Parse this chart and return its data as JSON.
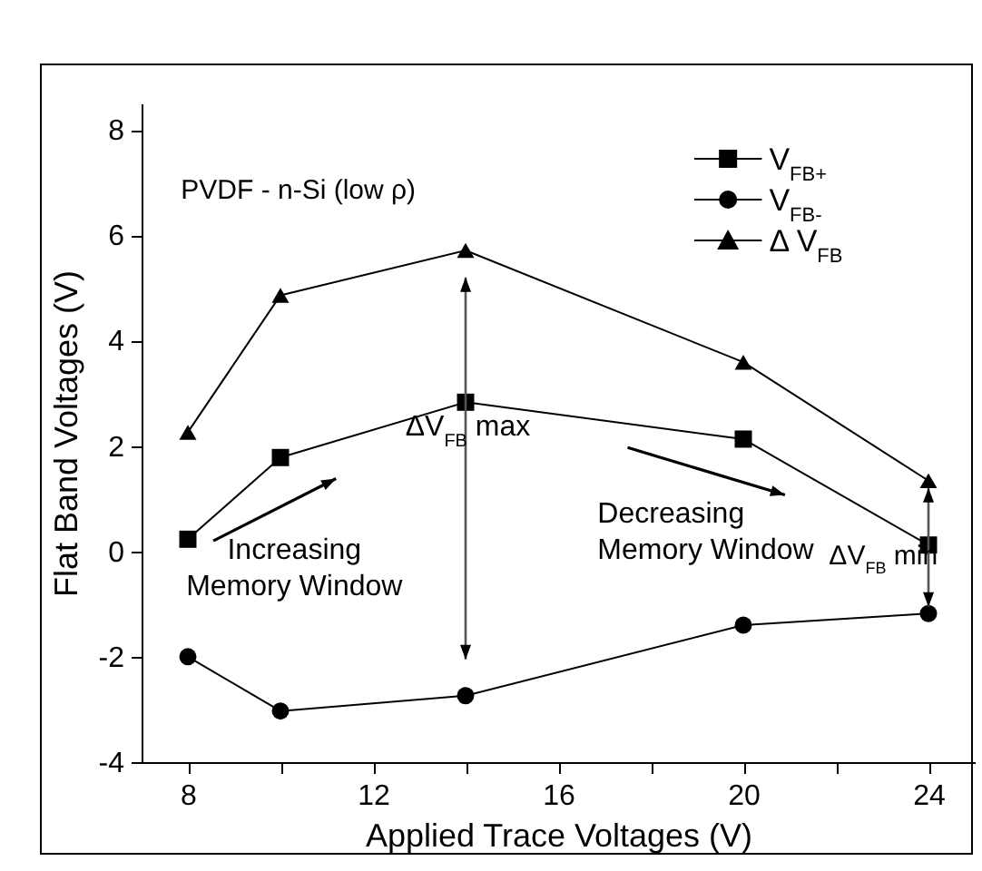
{
  "chart_data": {
    "type": "line",
    "xlabel": "Applied Trace Voltages (V)",
    "ylabel": "Flat Band Voltages (V)",
    "annotations": [
      "PVDF - n-Si (low ρ)",
      "Increasing Memory Window",
      "Decreasing Memory Window",
      "ΔV$_{FB}$ max",
      {
        "text": "ΔV$_{FB}$ min",
        "x": 24,
        "y": 1.34
      }
    ],
    "x": [
      8,
      10,
      14,
      20,
      24
    ],
    "series": [
      {
        "name": "V$_{FB+}$",
        "color": "#000000",
        "marker": "square",
        "values": [
          0.23,
          1.78,
          2.83,
          2.13,
          0.12
        ]
      },
      {
        "name": "V$_{FB-}$",
        "color": "#000000",
        "marker": "circle",
        "values": [
          -2.0,
          -3.03,
          -2.74,
          -1.4,
          -1.18
        ]
      },
      {
        "name": "Δ V$_{FB}$",
        "color": "#000000",
        "marker": "triangle",
        "values": [
          2.26,
          4.86,
          5.71,
          3.59,
          1.34
        ]
      }
    ],
    "xlim": [
      7,
      25
    ],
    "ylim": [
      -4,
      8.5
    ],
    "xticks": [
      8,
      {
        "value": 10,
        "label": null
      },
      12,
      {
        "value": 14,
        "label": null
      },
      16,
      {
        "value": 18,
        "label": null
      },
      20,
      {
        "value": 22,
        "label": null
      },
      24
    ],
    "yticks": [
      -4,
      -2,
      0,
      2,
      4,
      6,
      8
    ],
    "grid": false,
    "legend": "top right",
    "line_style": "solid"
  }
}
